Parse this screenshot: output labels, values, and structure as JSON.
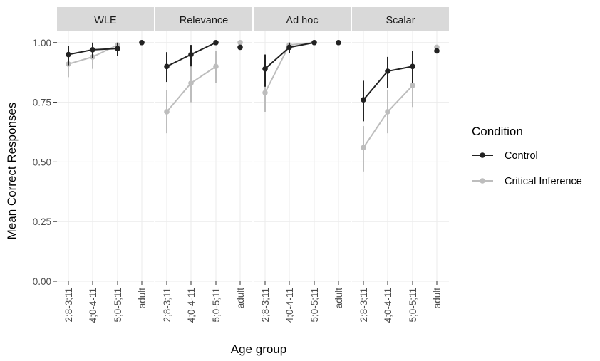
{
  "chart_data": {
    "type": "line",
    "xlabel": "Age group",
    "ylabel": "Mean Correct Responses",
    "ylim": [
      0,
      1.05
    ],
    "yticks": [
      "0.00",
      "0.25",
      "0.50",
      "0.75",
      "1.00"
    ],
    "ytick_values": [
      0,
      0.25,
      0.5,
      0.75,
      1.0
    ],
    "categories": [
      "2;8-3;11",
      "4;0-4-11",
      "5;0-5;11",
      "adult"
    ],
    "grid": true,
    "legend": {
      "title": "Condition",
      "position": "right",
      "entries": [
        "Control",
        "Critical Inference"
      ]
    },
    "series_colors": {
      "Control": "#222222",
      "Critical Inference": "#bdbdbd"
    },
    "panels": [
      {
        "title": "WLE",
        "series": [
          {
            "name": "Control",
            "values": [
              0.95,
              0.97,
              0.975,
              1.0
            ],
            "err_low": [
              0.905,
              0.935,
              0.945,
              1.0
            ],
            "err_high": [
              0.985,
              1.0,
              1.0,
              1.0
            ]
          },
          {
            "name": "Critical Inference",
            "values": [
              0.91,
              0.94,
              0.99,
              1.0
            ],
            "err_low": [
              0.855,
              0.89,
              0.97,
              1.0
            ],
            "err_high": [
              0.955,
              0.985,
              1.0,
              1.0
            ]
          }
        ]
      },
      {
        "title": "Relevance",
        "series": [
          {
            "name": "Control",
            "values": [
              0.9,
              0.95,
              1.0,
              0.98
            ],
            "err_low": [
              0.835,
              0.9,
              1.0,
              0.98
            ],
            "err_high": [
              0.96,
              0.99,
              1.0,
              0.98
            ]
          },
          {
            "name": "Critical Inference",
            "values": [
              0.71,
              0.83,
              0.9,
              1.0
            ],
            "err_low": [
              0.62,
              0.75,
              0.83,
              1.0
            ],
            "err_high": [
              0.8,
              0.9,
              0.965,
              1.0
            ]
          }
        ]
      },
      {
        "title": "Ad hoc",
        "series": [
          {
            "name": "Control",
            "values": [
              0.89,
              0.98,
              1.0,
              1.0
            ],
            "err_low": [
              0.815,
              0.955,
              1.0,
              1.0
            ],
            "err_high": [
              0.95,
              1.0,
              1.0,
              1.0
            ]
          },
          {
            "name": "Critical Inference",
            "values": [
              0.79,
              0.99,
              1.0,
              1.0
            ],
            "err_low": [
              0.71,
              0.965,
              1.0,
              1.0
            ],
            "err_high": [
              0.86,
              1.0,
              1.0,
              1.0
            ]
          }
        ]
      },
      {
        "title": "Scalar",
        "series": [
          {
            "name": "Control",
            "values": [
              0.76,
              0.88,
              0.9,
              0.965
            ],
            "err_low": [
              0.67,
              0.81,
              0.83,
              0.965
            ],
            "err_high": [
              0.84,
              0.94,
              0.965,
              0.965
            ]
          },
          {
            "name": "Critical Inference",
            "values": [
              0.56,
              0.71,
              0.82,
              0.98
            ],
            "err_low": [
              0.46,
              0.62,
              0.73,
              0.98
            ],
            "err_high": [
              0.65,
              0.8,
              0.9,
              0.98
            ]
          }
        ]
      }
    ]
  }
}
